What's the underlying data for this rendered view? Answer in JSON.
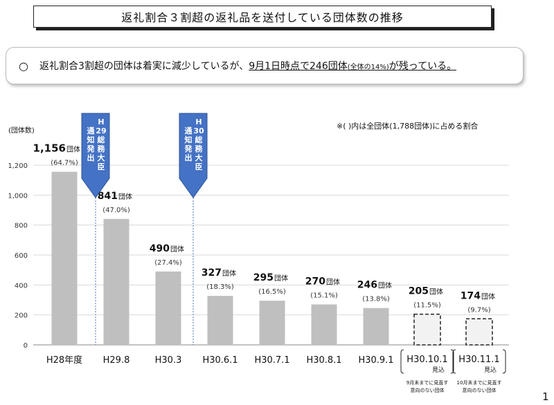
{
  "title": "返礼割合３割超の返礼品を送付している団体数の推移",
  "summary": {
    "bullet": "○",
    "part1": "返礼割合3割超の団体は着実に減少しているが、",
    "part2": "9月1日時点で246団体",
    "part3": "(全体の14%)",
    "part4": "が残っている。"
  },
  "note": "※(  )内は全団体(1,788団体)に占める割合",
  "page_number": "1",
  "callouts": [
    {
      "text": "H29総務大臣通知発出"
    },
    {
      "text": "H30総務大臣通知発出"
    }
  ],
  "chart_data": {
    "type": "bar",
    "ylabel": "(団体数)",
    "ylim": [
      0,
      1200
    ],
    "yticks": [
      "0",
      "200",
      "400",
      "600",
      "800",
      "1,000",
      "1,200"
    ],
    "grid": true,
    "unit_label": "団体",
    "categories": [
      "H28年度",
      "H29.8",
      "H30.3",
      "H30.6.1",
      "H30.7.1",
      "H30.8.1",
      "H30.9.1",
      "H30.10.1",
      "H30.11.1"
    ],
    "category_sublabels": [
      "",
      "",
      "",
      "",
      "",
      "",
      "",
      "見込",
      "見込"
    ],
    "values": [
      1156,
      841,
      490,
      327,
      295,
      270,
      246,
      205,
      174
    ],
    "value_labels": [
      "1,156",
      "841",
      "490",
      "327",
      "295",
      "270",
      "246",
      "205",
      "174"
    ],
    "percent_labels": [
      "(64.7%)",
      "(47.0%)",
      "(27.4%)",
      "(18.3%)",
      "(16.5%)",
      "(15.1%)",
      "(13.8%)",
      "(11.5%)",
      "(9.7%)"
    ],
    "projected": [
      false,
      false,
      false,
      false,
      false,
      false,
      false,
      true,
      true
    ],
    "footnotes": [
      "",
      "",
      "",
      "",
      "",
      "",
      "",
      "9月末までに見直す意向のない団体",
      "10月末までに見直す意向のない団体"
    ],
    "colors": {
      "bar": "#bfbfbf",
      "projected_fill": "#f2f2f2",
      "callout": "#4472c4",
      "grid": "#d9d9d9"
    }
  }
}
